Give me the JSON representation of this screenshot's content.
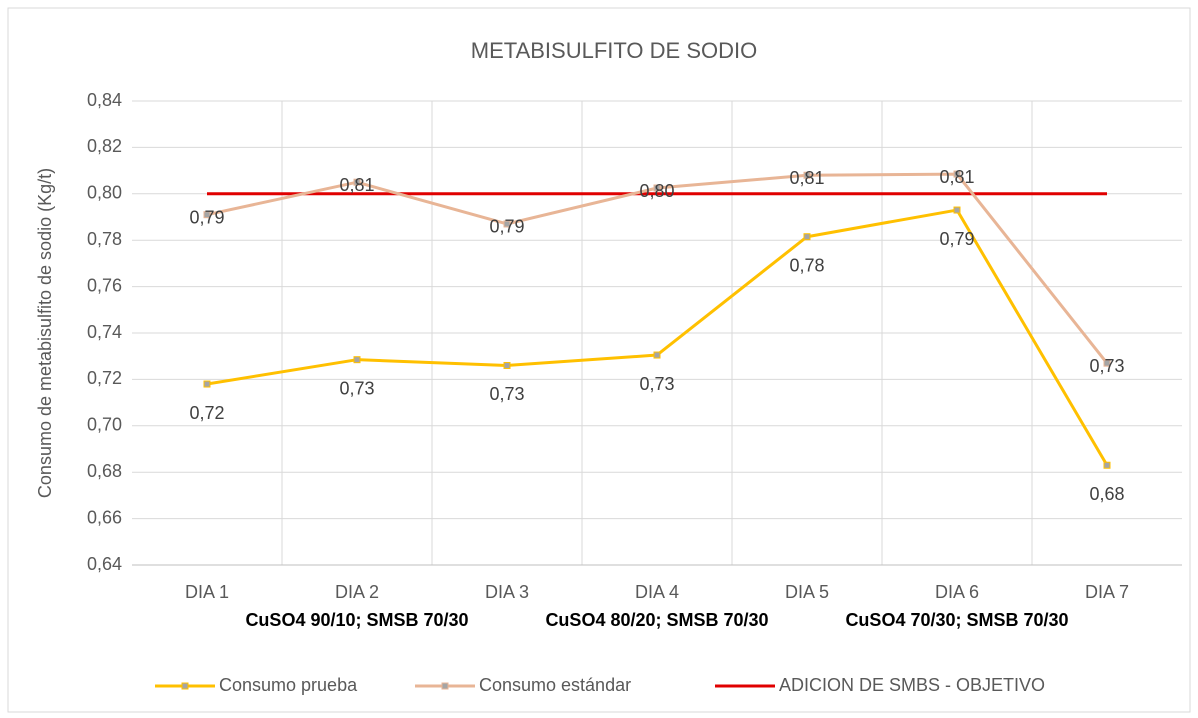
{
  "chart_data": {
    "type": "line",
    "title": "METABISULFITO DE SODIO",
    "y_label": "Consumo de metabisulfito de sodio (Kg/t)",
    "categories": [
      "DIA 1",
      "DIA 2",
      "DIA 3",
      "DIA 4",
      "DIA 5",
      "DIA 6",
      "DIA 7"
    ],
    "category_groups": [
      "CuSO4 90/10;  SMSB   70/30",
      "CuSO4 80/20; SMSB  70/30",
      "CuSO4 70/30;  SMSB 70/30"
    ],
    "series": [
      {
        "name": "Consumo prueba",
        "color": "#ffc000",
        "marker": true,
        "values": [
          0.718,
          0.7285,
          0.726,
          0.7305,
          0.7815,
          0.793,
          0.683
        ],
        "value_labels": [
          "0,72",
          "0,73",
          "0,73",
          "0,73",
          "0,78",
          "0,79",
          "0,68"
        ]
      },
      {
        "name": "Consumo estándar",
        "color": "#e8b596",
        "marker": true,
        "values": [
          0.791,
          0.805,
          0.787,
          0.8025,
          0.808,
          0.8085,
          0.727
        ],
        "value_labels": [
          "0,79",
          "0,81",
          "0,79",
          "0,80",
          "0,81",
          "0,81",
          "0,73"
        ]
      },
      {
        "name": "ADICION DE SMBS  - OBJETIVO",
        "color": "#e00000",
        "marker": false,
        "values": [
          0.8,
          0.8,
          0.8,
          0.8,
          0.8,
          0.8,
          0.8
        ]
      }
    ],
    "ylim": [
      0.64,
      0.84
    ],
    "yticks": [
      {
        "value": 0.64,
        "label": "0,64"
      },
      {
        "value": 0.66,
        "label": "0,66"
      },
      {
        "value": 0.68,
        "label": "0,68"
      },
      {
        "value": 0.7,
        "label": "0,70"
      },
      {
        "value": 0.72,
        "label": "0,72"
      },
      {
        "value": 0.74,
        "label": "0,74"
      },
      {
        "value": 0.76,
        "label": "0,76"
      },
      {
        "value": 0.78,
        "label": "0,78"
      },
      {
        "value": 0.8,
        "label": "0,80"
      },
      {
        "value": 0.82,
        "label": "0,82"
      },
      {
        "value": 0.84,
        "label": "0,84"
      }
    ],
    "grid": true,
    "legend": "bottom"
  }
}
